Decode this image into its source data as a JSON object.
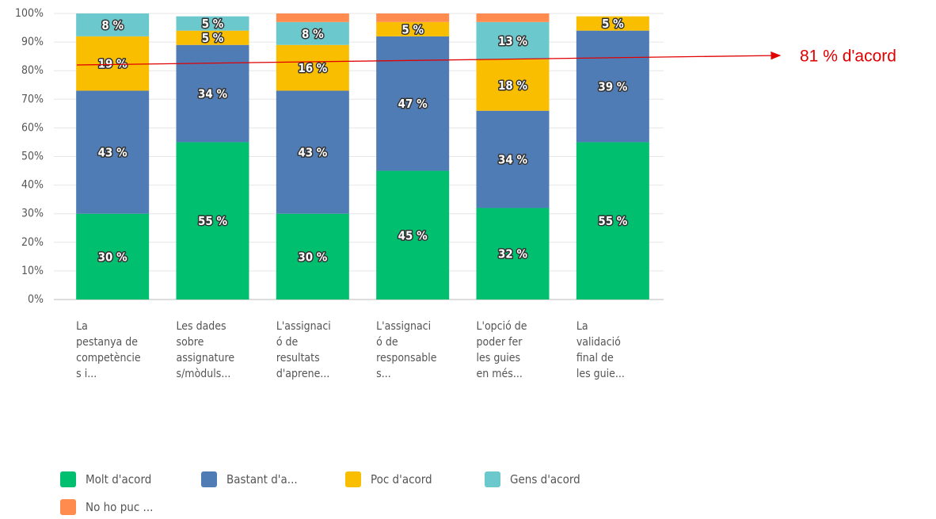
{
  "chart_data": {
    "type": "stacked_bar",
    "categories": [
      "La\npestanya de\ncompetèncie\ns i...",
      "Les dades\nsobre\nassignature\ns/mòduls...",
      "L'assignaci\nó de\nresultats\nd'aprene...",
      "L'assignaci\nó de\nresponsable\ns...",
      "L'opció de\npoder fer\nles guies\nen més...",
      "La\nvalidació\nfinal de\nles guie..."
    ],
    "series": [
      {
        "name": "Molt d'acord",
        "color": "#00bf6f",
        "values": [
          30,
          55,
          30,
          45,
          32,
          55
        ],
        "value_labels": [
          "30 %",
          "55 %",
          "30 %",
          "45 %",
          "32 %",
          "55 %"
        ]
      },
      {
        "name": "Bastant d'a...",
        "color": "#507cb6",
        "values": [
          43,
          34,
          43,
          47,
          34,
          39
        ],
        "value_labels": [
          "43 %",
          "34 %",
          "43 %",
          "47 %",
          "34 %",
          "39 %"
        ]
      },
      {
        "name": "Poc d'acord",
        "color": "#f9be00",
        "values": [
          19,
          5,
          16,
          5,
          18,
          5
        ],
        "value_labels": [
          "19 %",
          "5 %",
          "16 %",
          "5 %",
          "18 %",
          "5 %"
        ]
      },
      {
        "name": "Gens d'acord",
        "color": "#6bc8cd",
        "values": [
          8,
          5,
          8,
          0,
          13,
          0
        ],
        "value_labels": [
          "8 %",
          "5 %",
          "8 %",
          null,
          "13 %",
          null
        ]
      },
      {
        "name": "No ho puc ...",
        "color": "#ff8b4f",
        "values": [
          0,
          0,
          3,
          3,
          3,
          0
        ],
        "value_labels": [
          null,
          null,
          null,
          null,
          null,
          null
        ]
      }
    ],
    "ylim": [
      0,
      100
    ],
    "yticks": [
      {
        "value": 0,
        "label": "0%"
      },
      {
        "value": 10,
        "label": "10%"
      },
      {
        "value": 20,
        "label": "20%"
      },
      {
        "value": 30,
        "label": "30%"
      },
      {
        "value": 40,
        "label": "40%"
      },
      {
        "value": 50,
        "label": "50%"
      },
      {
        "value": 60,
        "label": "60%"
      },
      {
        "value": 70,
        "label": "70%"
      },
      {
        "value": 80,
        "label": "80%"
      },
      {
        "value": 90,
        "label": "90%"
      },
      {
        "value": 100,
        "label": "100%"
      }
    ],
    "grid": true,
    "annotation": "81 % d'acord"
  }
}
